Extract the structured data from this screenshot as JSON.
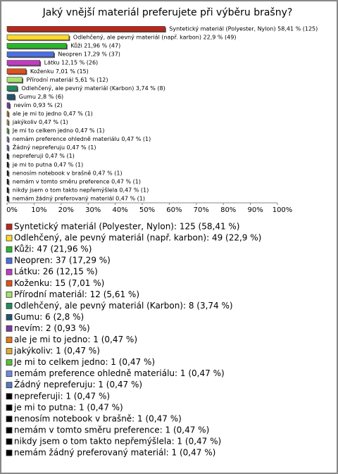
{
  "chart_data": {
    "type": "hbar",
    "title": "Jaký vnější materiál preferujete při výběru brašny?",
    "categories": [
      "Syntetický materiál (Polyester, Nylon)",
      "Odlehčený, ale pevný materiál (např. karbon)",
      "Kůži",
      "Neopren",
      "Látku",
      "Koženku",
      "Přírodní materiál",
      "Odlehčený, ale pevný materiál (Karbon)",
      "Gumu",
      "nevím",
      "ale je mi to jedno",
      "jakýkoliv",
      "Je mi to celkem jedno",
      "nemám preference ohledně materiálu",
      "Žádný nepreferuju",
      "nepreferuji",
      "je mi to putna",
      "nenosím notebook v brašně",
      "nemám v tomto směru preference",
      "nikdy jsem o tom takto nepřemýšlela",
      "nemám žádný preferovaný materiál"
    ],
    "values": [
      58.41,
      22.9,
      21.96,
      17.29,
      12.15,
      7.01,
      5.61,
      3.74,
      2.8,
      0.93,
      0.47,
      0.47,
      0.47,
      0.47,
      0.47,
      0.47,
      0.47,
      0.47,
      0.47,
      0.47,
      0.47
    ],
    "value_labels": [
      "Syntetický materiál (Polyester, Nylon) 58,41 % (125)",
      "Odlehčený, ale pevný materiál (např. karbon) 22,9 % (49)",
      "Kůži 21,96 % (47)",
      "Neopren 17,29 % (37)",
      "Látku 12,15 % (26)",
      "Koženku 7,01 % (15)",
      "Přírodní materiál 5,61 % (12)",
      "Odlehčený, ale pevný materiál (Karbon) 3,74 % (8)",
      "Gumu 2,8 % (6)",
      "nevím 0,93 % (2)",
      "ale je mi to jedno 0,47 % (1)",
      "jakýkoliv 0,47 % (1)",
      "Je mi to celkem jedno 0,47 % (1)",
      "nemám preference ohledně materiálu 0,47 % (1)",
      "Žádný nepreferuju 0,47 % (1)",
      "nepreferuji 0,47 % (1)",
      "je mi to putna 0,47 % (1)",
      "nenosím notebook v brašně 0,47 % (1)",
      "nemám v tomto směru preference 0,47 % (1)",
      "nikdy jsem o tom takto nepřemýšlela 0,47 % (1)",
      "nemám žádný preferovaný materiál 0,47 % (1)"
    ],
    "legend": [
      "Syntetický materiál (Polyester, Nylon): 125 (58,41 %)",
      "Odlehčený, ale pevný materiál (např. karbon): 49 (22,9 %)",
      "Kůži: 47 (21,96 %)",
      "Neopren: 37 (17,29 %)",
      "Látku: 26 (12,15 %)",
      "Koženku: 15 (7,01 %)",
      "Přírodní materiál: 12 (5,61 %)",
      "Odlehčený, ale pevný materiál (Karbon): 8 (3,74 %)",
      "Gumu: 6 (2,8 %)",
      "nevím: 2 (0,93 %)",
      "ale je mi to jedno: 1 (0,47 %)",
      "jakýkoliv: 1 (0,47 %)",
      "Je mi to celkem jedno: 1 (0,47 %)",
      "nemám preference ohledně materiálu: 1 (0,47 %)",
      "Žádný nepreferuju: 1 (0,47 %)",
      "nepreferuji: 1 (0,47 %)",
      "je mi to putna: 1 (0,47 %)",
      "nenosím notebook v brašně: 1 (0,47 %)",
      "nemám v tomto směru preference: 1 (0,47 %)",
      "nikdy jsem o tom takto nepřemýšlela: 1 (0,47 %)",
      "nemám žádný preferovaný materiál: 1 (0,47 %)"
    ],
    "colors": [
      "#b8281a",
      "#ffd92a",
      "#2bb52b",
      "#4a6fe0",
      "#c23ac2",
      "#e0501c",
      "#a6e070",
      "#1f8a60",
      "#1f5570",
      "#7a3aa0",
      "#e07a18",
      "#e0a83a",
      "#58c03a",
      "#7088e0",
      "#5a78c0",
      "#000000",
      "#000000",
      "#000000",
      "#000000",
      "#000000",
      "#000000"
    ],
    "xlim": [
      0,
      100
    ],
    "xticks": [
      {
        "value": 0,
        "label": "0%"
      },
      {
        "value": 10,
        "label": "10%"
      },
      {
        "value": 20,
        "label": "20%"
      },
      {
        "value": 30,
        "label": "30%"
      },
      {
        "value": 40,
        "label": "40%"
      },
      {
        "value": 50,
        "label": "50%"
      },
      {
        "value": 60,
        "label": "60%"
      },
      {
        "value": 70,
        "label": "70%"
      },
      {
        "value": 80,
        "label": "80%"
      },
      {
        "value": 90,
        "label": "90%"
      },
      {
        "value": 100,
        "label": "100%"
      }
    ]
  }
}
